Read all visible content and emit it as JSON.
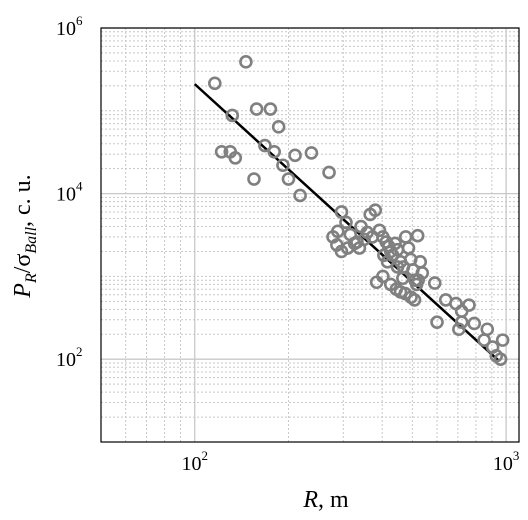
{
  "chart_data": {
    "type": "scatter",
    "x_scale": "log",
    "y_scale": "log",
    "xlim": [
      50,
      1100
    ],
    "ylim": [
      10,
      1000000
    ],
    "x_ticks": [
      {
        "value": 100,
        "base": "10",
        "exp": "2"
      },
      {
        "value": 1000,
        "base": "10",
        "exp": "3"
      }
    ],
    "y_ticks": [
      {
        "value": 100,
        "base": "10",
        "exp": "2"
      },
      {
        "value": 10000,
        "base": "10",
        "exp": "4"
      },
      {
        "value": 1000000,
        "base": "10",
        "exp": "6"
      }
    ],
    "xlabel": {
      "var": "R",
      "rest": ", m"
    },
    "ylabel": {
      "p": "P",
      "p_sub": "R",
      "slash": "/σ",
      "sigma_sub": "Ball",
      "rest": ",  c. u."
    },
    "grid": true,
    "colors": {
      "markers": "#808080",
      "fit_line": "#000000",
      "grid": "#c8c8c8"
    },
    "points": [
      [
        116,
        215000
      ],
      [
        146,
        390000
      ],
      [
        132,
        88000
      ],
      [
        158,
        105000
      ],
      [
        175,
        105000
      ],
      [
        186,
        64000
      ],
      [
        122,
        32000
      ],
      [
        130,
        32000
      ],
      [
        135,
        27000
      ],
      [
        155,
        15000
      ],
      [
        168,
        38000
      ],
      [
        180,
        32000
      ],
      [
        192,
        22000
      ],
      [
        200,
        15000
      ],
      [
        210,
        29000
      ],
      [
        218,
        9500
      ],
      [
        237,
        31000
      ],
      [
        270,
        18000
      ],
      [
        288,
        3500
      ],
      [
        296,
        6000
      ],
      [
        306,
        4500
      ],
      [
        316,
        3200
      ],
      [
        326,
        2500
      ],
      [
        338,
        2200
      ],
      [
        350,
        2800
      ],
      [
        366,
        5600
      ],
      [
        380,
        6300
      ],
      [
        392,
        3600
      ],
      [
        402,
        3000
      ],
      [
        412,
        2600
      ],
      [
        420,
        2300
      ],
      [
        426,
        2000
      ],
      [
        432,
        1800
      ],
      [
        440,
        2500
      ],
      [
        448,
        2100
      ],
      [
        458,
        1500
      ],
      [
        468,
        1300
      ],
      [
        476,
        3000
      ],
      [
        486,
        2200
      ],
      [
        494,
        1600
      ],
      [
        502,
        1200
      ],
      [
        510,
        900
      ],
      [
        516,
        800
      ],
      [
        520,
        3100
      ],
      [
        530,
        1500
      ],
      [
        538,
        1100
      ],
      [
        384,
        850
      ],
      [
        402,
        1000
      ],
      [
        426,
        800
      ],
      [
        444,
        700
      ],
      [
        458,
        650
      ],
      [
        474,
        620
      ],
      [
        495,
        560
      ],
      [
        508,
        520
      ],
      [
        522,
        900
      ],
      [
        590,
        830
      ],
      [
        640,
        520
      ],
      [
        690,
        470
      ],
      [
        720,
        280
      ],
      [
        705,
        230
      ],
      [
        720,
        380
      ],
      [
        760,
        450
      ],
      [
        790,
        270
      ],
      [
        850,
        170
      ],
      [
        870,
        230
      ],
      [
        905,
        140
      ],
      [
        930,
        110
      ],
      [
        960,
        100
      ],
      [
        975,
        170
      ],
      [
        600,
        280
      ],
      [
        278,
        3000
      ],
      [
        286,
        2400
      ],
      [
        296,
        2000
      ],
      [
        342,
        4000
      ],
      [
        358,
        3400
      ],
      [
        372,
        3000
      ],
      [
        405,
        1800
      ],
      [
        416,
        1500
      ],
      [
        448,
        1300
      ],
      [
        466,
        950
      ],
      [
        332,
        2600
      ],
      [
        310,
        2200
      ]
    ],
    "fit_line": {
      "x": [
        100,
        950
      ],
      "y": [
        210000,
        95
      ]
    }
  }
}
